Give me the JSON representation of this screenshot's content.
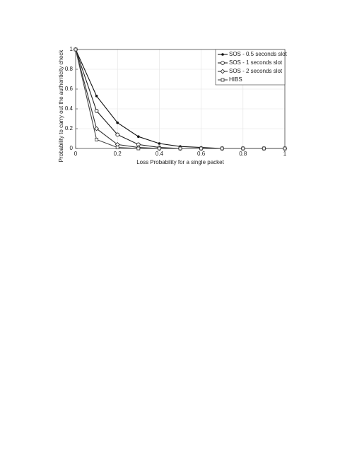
{
  "chart_data": {
    "type": "line",
    "x_label": "Loss Probability for a single packet",
    "y_label": "Probability to carry out the authenticity check",
    "x": [
      0,
      0.1,
      0.2,
      0.3,
      0.4,
      0.5,
      0.6,
      0.7,
      0.8,
      0.9,
      1
    ],
    "series": [
      {
        "name": "SOS - 0.5 seconds slot",
        "color": "#111111",
        "marker": "dot",
        "values": [
          1,
          0.53,
          0.26,
          0.12,
          0.05,
          0.02,
          0.01,
          0,
          0,
          0,
          0
        ]
      },
      {
        "name": "SOS - 1 seconds slot",
        "color": "#222222",
        "marker": "circle",
        "values": [
          1,
          0.38,
          0.14,
          0.04,
          0.01,
          0,
          0,
          0,
          0,
          0,
          0
        ]
      },
      {
        "name": "SOS - 2 seconds slot",
        "color": "#333333",
        "marker": "diamond",
        "values": [
          1,
          0.2,
          0.04,
          0.01,
          0,
          0,
          0,
          0,
          0,
          0,
          0
        ]
      },
      {
        "name": "HIBS",
        "color": "#444444",
        "marker": "square",
        "values": [
          1,
          0.09,
          0.01,
          0,
          0,
          0,
          0,
          0,
          0,
          0,
          0
        ]
      }
    ],
    "xlim": [
      0,
      1
    ],
    "xticks": [
      0,
      0.2,
      0.4,
      0.6,
      0.8,
      1
    ],
    "ylim": [
      0,
      1
    ],
    "yticks": [
      0,
      0.2,
      0.4,
      0.6,
      0.8,
      1
    ],
    "grid": true,
    "legend": "top-right"
  }
}
